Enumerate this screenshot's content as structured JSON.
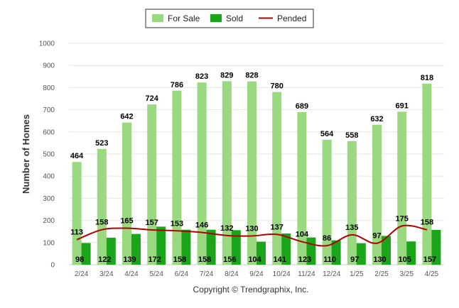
{
  "chart_data": {
    "type": "bar",
    "categories": [
      "2/24",
      "3/24",
      "4/24",
      "5/24",
      "6/24",
      "7/24",
      "8/24",
      "9/24",
      "10/24",
      "11/24",
      "12/24",
      "1/25",
      "2/25",
      "3/25",
      "4/25"
    ],
    "series": [
      {
        "name": "For Sale",
        "type": "bar",
        "color": "#9ad97f",
        "values": [
          464,
          523,
          642,
          724,
          786,
          823,
          829,
          828,
          780,
          689,
          564,
          558,
          632,
          691,
          818
        ]
      },
      {
        "name": "Sold",
        "type": "bar",
        "color": "#1aa51a",
        "values": [
          98,
          122,
          139,
          172,
          158,
          158,
          156,
          104,
          141,
          123,
          110,
          97,
          130,
          105,
          157
        ]
      },
      {
        "name": "Pended",
        "type": "line",
        "color": "#b30000",
        "values": [
          113,
          158,
          165,
          157,
          153,
          146,
          132,
          130,
          137,
          104,
          86,
          135,
          97,
          175,
          158
        ]
      }
    ],
    "ylabel": "Number of Homes",
    "ylim": [
      0,
      1000
    ],
    "yticks": [
      0,
      100,
      200,
      300,
      400,
      500,
      600,
      700,
      800,
      900,
      1000
    ],
    "grid": true,
    "legend_position": "top-center"
  },
  "copyright": "Copyright © Trendgraphix, Inc."
}
